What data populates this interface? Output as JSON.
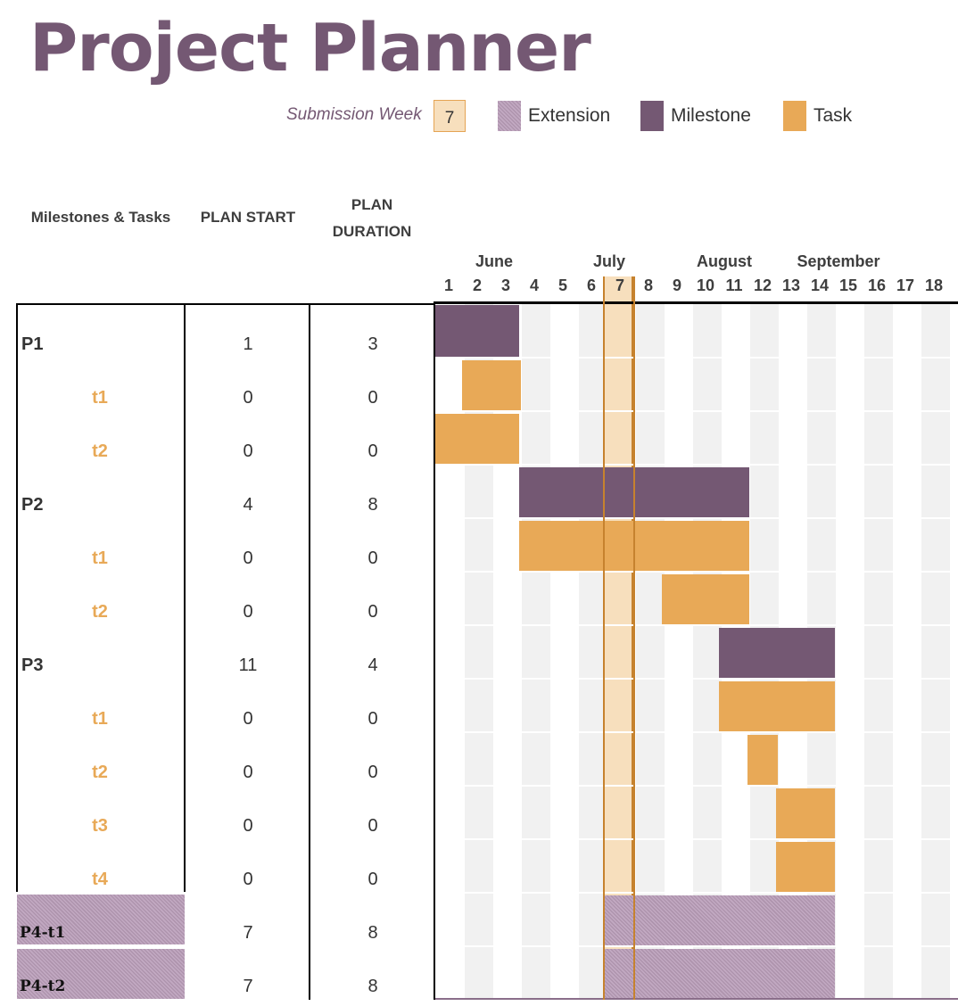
{
  "title": "Project Planner",
  "legend": {
    "submission_label": "Submission Week",
    "submission_week": "7",
    "extension": "Extension",
    "milestone": "Milestone",
    "task": "Task"
  },
  "headers": {
    "name": "Milestones & Tasks",
    "plan_start": "PLAN START",
    "plan_duration_1": "PLAN",
    "plan_duration_2": "DURATION"
  },
  "months": [
    "June",
    "July",
    "August",
    "September"
  ],
  "weeks": [
    "1",
    "2",
    "3",
    "4",
    "5",
    "6",
    "7",
    "8",
    "9",
    "10",
    "11",
    "12",
    "13",
    "14",
    "15",
    "16",
    "17",
    "18"
  ],
  "colors": {
    "milestone": "#745873",
    "task": "#e8a957",
    "extension": "#b59bb4",
    "highlight": "#f7dfbd"
  },
  "rows": [
    {
      "name": "P1",
      "type": "milestone",
      "start": "1",
      "duration": "3",
      "bar_start": 1,
      "bar_weeks": 3
    },
    {
      "name": "t1",
      "type": "task",
      "start": "0",
      "duration": "0",
      "bar_start": 2,
      "bar_weeks": 2
    },
    {
      "name": "t2",
      "type": "task",
      "start": "0",
      "duration": "0",
      "bar_start": 1,
      "bar_weeks": 3
    },
    {
      "name": "P2",
      "type": "milestone",
      "start": "4",
      "duration": "8",
      "bar_start": 4,
      "bar_weeks": 8
    },
    {
      "name": "t1",
      "type": "task",
      "start": "0",
      "duration": "0",
      "bar_start": 4,
      "bar_weeks": 8
    },
    {
      "name": "t2",
      "type": "task",
      "start": "0",
      "duration": "0",
      "bar_start": 9,
      "bar_weeks": 3
    },
    {
      "name": "P3",
      "type": "milestone",
      "start": "11",
      "duration": "4",
      "bar_start": 11,
      "bar_weeks": 4
    },
    {
      "name": "t1",
      "type": "task",
      "start": "0",
      "duration": "0",
      "bar_start": 11,
      "bar_weeks": 4
    },
    {
      "name": "t2",
      "type": "task",
      "start": "0",
      "duration": "0",
      "bar_start": 12,
      "bar_weeks": 1
    },
    {
      "name": "t3",
      "type": "task",
      "start": "0",
      "duration": "0",
      "bar_start": 13,
      "bar_weeks": 2
    },
    {
      "name": "t4",
      "type": "task",
      "start": "0",
      "duration": "0",
      "bar_start": 13,
      "bar_weeks": 2
    },
    {
      "name": "P4-t1",
      "type": "extension",
      "start": "7",
      "duration": "8",
      "bar_start": 7,
      "bar_weeks": 8
    },
    {
      "name": "P4-t2",
      "type": "extension",
      "start": "7",
      "duration": "8",
      "bar_start": 7,
      "bar_weeks": 8
    }
  ]
}
